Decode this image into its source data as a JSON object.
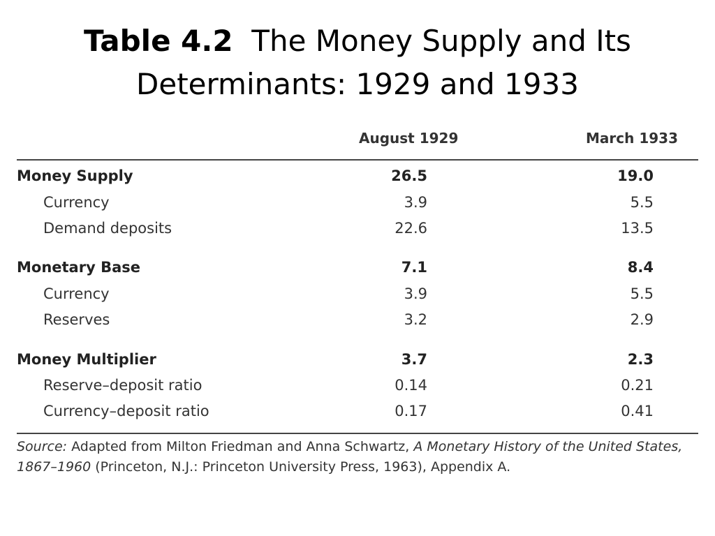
{
  "title": {
    "bold": "Table 4.2",
    "rest": "The Money Supply and Its Determinants: 1929 and 1933"
  },
  "table": {
    "columns": [
      "August 1929",
      "March 1933"
    ],
    "rows": [
      {
        "label": "Money Supply",
        "v1": "26.5",
        "v2": "19.0",
        "bold": true
      },
      {
        "label": "Currency",
        "v1": "3.9",
        "v2": "5.5",
        "bold": false
      },
      {
        "label": "Demand deposits",
        "v1": "22.6",
        "v2": "13.5",
        "bold": false
      },
      {
        "label": "Monetary Base",
        "v1": "7.1",
        "v2": "8.4",
        "bold": true
      },
      {
        "label": "Currency",
        "v1": "3.9",
        "v2": "5.5",
        "bold": false
      },
      {
        "label": "Reserves",
        "v1": "3.2",
        "v2": "2.9",
        "bold": false
      },
      {
        "label": "Money Multiplier",
        "v1": "3.7",
        "v2": "2.3",
        "bold": true
      },
      {
        "label": "Reserve–deposit ratio",
        "v1": "0.14",
        "v2": "0.21",
        "bold": false
      },
      {
        "label": "Currency–deposit ratio",
        "v1": "0.17",
        "v2": "0.41",
        "bold": false
      }
    ]
  },
  "source": {
    "lead": "Source:",
    "text1": " Adapted from Milton Friedman and Anna Schwartz, ",
    "book": "A Monetary History of the United States, 1867–1960",
    "text2": " (Princeton, N.J.: Princeton University Press, 1963), Appendix A."
  }
}
